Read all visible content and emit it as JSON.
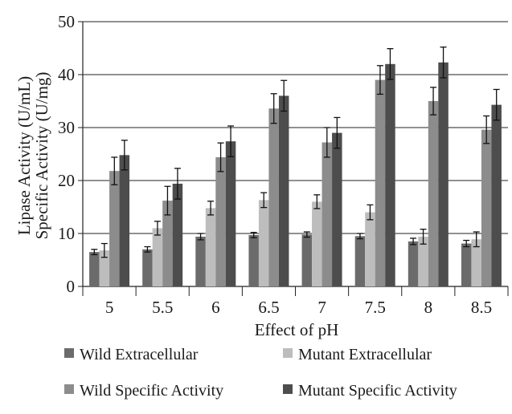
{
  "chart_data": {
    "type": "bar",
    "xlabel": "Effect of pH",
    "ylabel_lines": [
      "Lipase Activity (U/mL)",
      "Specific Activity (U/mg)"
    ],
    "ylim": [
      0,
      50
    ],
    "yticks": [
      0,
      10,
      20,
      30,
      40,
      50
    ],
    "grid": true,
    "legend_position": "bottom",
    "categories": [
      "5",
      "5.5",
      "6",
      "6.5",
      "7",
      "7.5",
      "8",
      "8.5"
    ],
    "series": [
      {
        "name": "Wild Extracellular",
        "color": "#6b6b6b",
        "values": [
          6.5,
          7.0,
          9.4,
          9.7,
          9.8,
          9.5,
          8.5,
          8.1
        ],
        "errors": [
          0.5,
          0.5,
          0.6,
          0.5,
          0.5,
          0.5,
          0.6,
          0.6
        ]
      },
      {
        "name": "Mutant Extracellular",
        "color": "#bdbdbd",
        "values": [
          6.8,
          11.0,
          14.8,
          16.3,
          16.0,
          14.0,
          9.4,
          8.9
        ],
        "errors": [
          1.3,
          1.3,
          1.3,
          1.4,
          1.3,
          1.4,
          1.4,
          1.4
        ]
      },
      {
        "name": "Wild  Specific Activity",
        "color": "#8c8c8c",
        "values": [
          21.8,
          16.2,
          24.4,
          33.6,
          27.2,
          39.0,
          35.0,
          29.6
        ],
        "errors": [
          2.6,
          2.7,
          2.7,
          2.8,
          2.8,
          2.7,
          2.6,
          2.6
        ]
      },
      {
        "name": "Mutant Specific Activity",
        "color": "#4d4d4d",
        "values": [
          24.8,
          19.4,
          27.4,
          36.0,
          29.0,
          42.0,
          42.3,
          34.3
        ],
        "errors": [
          2.8,
          2.9,
          2.9,
          2.9,
          2.9,
          2.9,
          2.9,
          2.9
        ]
      }
    ]
  }
}
